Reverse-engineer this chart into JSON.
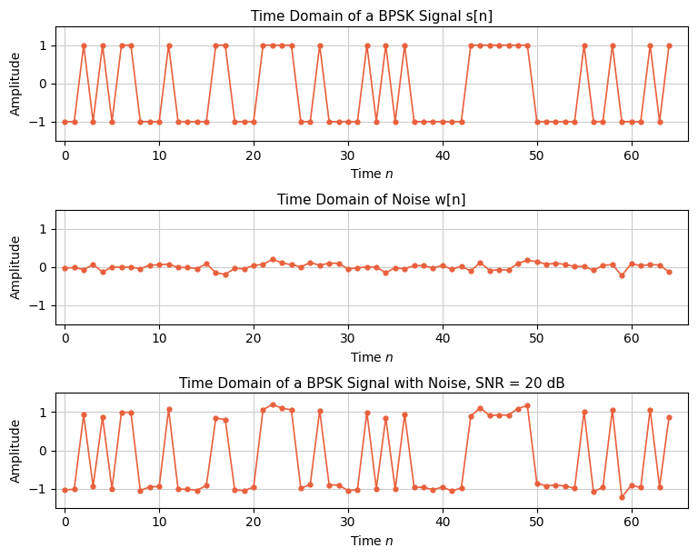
{
  "title1": "Time Domain of a BPSK Signal s[n]",
  "title2": "Time Domain of Noise w[n]",
  "title3": "Time Domain of a BPSK Signal with Noise, SNR = 20 dB",
  "xlabel": "Time $n$",
  "ylabel": "Amplitude",
  "line_color": "#E8603C",
  "marker": "o",
  "markersize": 3.5,
  "linewidth": 1.2,
  "N": 65,
  "SNR_dB": 20,
  "random_seed": 0,
  "figsize": [
    7.68,
    6.14
  ],
  "dpi": 100,
  "background_color": "#ffffff",
  "grid_color": "#cccccc",
  "xlim": [
    -1,
    66
  ],
  "ylim1": [
    -1.5,
    1.5
  ],
  "ylim2": [
    -1.5,
    1.5
  ],
  "ylim3": [
    -1.5,
    1.5
  ],
  "yticks1": [
    -1,
    0,
    1
  ],
  "yticks2": [
    -1,
    0,
    1
  ],
  "yticks3": [
    -1,
    0,
    1
  ],
  "xticks": [
    0,
    10,
    20,
    30,
    40,
    50,
    60
  ]
}
